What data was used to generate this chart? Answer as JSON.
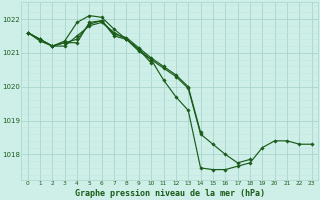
{
  "background_color": "#ceeee8",
  "grid_color_major": "#aad4cc",
  "grid_color_minor": "#c0e8e0",
  "line_color": "#1a5c1a",
  "title": "Graphe pression niveau de la mer (hPa)",
  "xlim": [
    -0.5,
    23.5
  ],
  "ylim": [
    1017.25,
    1022.5
  ],
  "yticks": [
    1018,
    1019,
    1020,
    1021,
    1022
  ],
  "xticks": [
    0,
    1,
    2,
    3,
    4,
    5,
    6,
    7,
    8,
    9,
    10,
    11,
    12,
    13,
    14,
    15,
    16,
    17,
    18,
    19,
    20,
    21,
    22,
    23
  ],
  "series": [
    {
      "x": [
        0,
        1,
        2,
        3,
        4,
        5,
        6,
        7,
        8,
        9,
        10,
        11,
        12,
        13,
        14,
        15,
        16,
        17,
        18,
        19,
        20,
        21,
        22,
        23
      ],
      "y": [
        1021.6,
        1021.4,
        1021.2,
        1021.2,
        1021.5,
        1021.8,
        1021.9,
        1021.6,
        1021.4,
        1021.1,
        1020.8,
        1020.2,
        1019.7,
        1019.3,
        1017.6,
        1017.55,
        1017.55,
        1017.65,
        1017.75,
        1018.2,
        1018.4,
        1018.4,
        1018.3,
        1018.3
      ]
    },
    {
      "x": [
        0,
        1,
        2,
        3,
        4,
        5,
        6,
        7,
        8,
        9,
        10,
        11,
        12,
        13,
        14,
        15,
        16,
        17,
        18
      ],
      "y": [
        1021.6,
        1021.4,
        1021.2,
        1021.3,
        1021.3,
        1021.9,
        1021.95,
        1021.5,
        1021.4,
        1021.05,
        1020.8,
        1020.55,
        1020.3,
        1019.95,
        1018.6,
        1018.3,
        1018.0,
        1017.75,
        1017.85
      ]
    },
    {
      "x": [
        0,
        1,
        2,
        3,
        4,
        5,
        6,
        7,
        8,
        9,
        10
      ],
      "y": [
        1021.6,
        1021.4,
        1021.2,
        1021.35,
        1021.9,
        1022.1,
        1022.05,
        1021.7,
        1021.4,
        1021.1,
        1020.7
      ]
    },
    {
      "x": [
        0,
        1,
        2,
        3,
        4,
        5,
        6,
        7,
        8,
        9,
        10,
        11,
        12,
        13,
        14
      ],
      "y": [
        1021.6,
        1021.35,
        1021.2,
        1021.3,
        1021.4,
        1021.85,
        1021.95,
        1021.55,
        1021.45,
        1021.15,
        1020.85,
        1020.6,
        1020.35,
        1020.0,
        1018.65
      ]
    }
  ]
}
